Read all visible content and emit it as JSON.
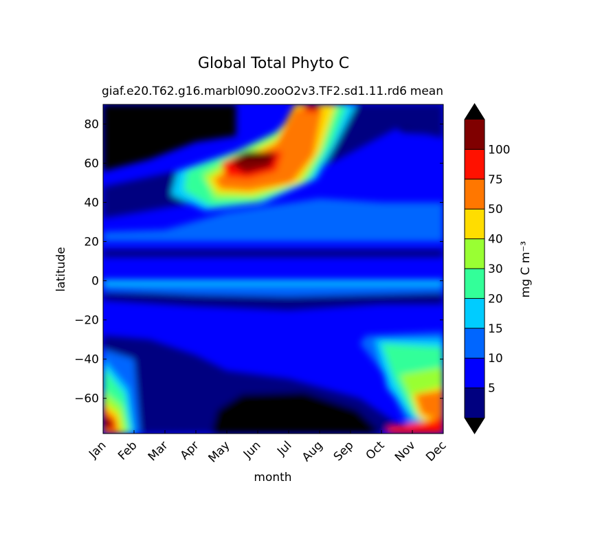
{
  "chart_data": {
    "type": "heatmap",
    "title": "Global Total Phyto C",
    "subtitle_left": "giaf.e20.T62.g16.marbl090.zooO2v3.TF2.sd1.11.rd6",
    "subtitle_right": "mean",
    "xlabel": "month",
    "ylabel": "latitude",
    "x_ticks": [
      "Jan",
      "Feb",
      "Mar",
      "Apr",
      "May",
      "Jun",
      "Jul",
      "Aug",
      "Sep",
      "Oct",
      "Nov",
      "Dec"
    ],
    "y_ticks": [
      "80",
      "60",
      "40",
      "20",
      "0",
      "−20",
      "−40",
      "−60"
    ],
    "y_tick_values": [
      80,
      60,
      40,
      20,
      0,
      -20,
      -40,
      -60
    ],
    "ylim": [
      -78,
      90
    ],
    "colorbar": {
      "label": "mg C m⁻³",
      "levels": [
        0,
        5,
        10,
        15,
        20,
        30,
        40,
        50,
        75,
        100,
        120
      ],
      "tick_labels": [
        "5",
        "10",
        "15",
        "20",
        "30",
        "40",
        "50",
        "75",
        "100"
      ],
      "extend": "both",
      "colors": [
        "#000080",
        "#0000ff",
        "#0066ff",
        "#00ccff",
        "#33ff99",
        "#99ff33",
        "#ffdd00",
        "#ff7700",
        "#ff1100",
        "#800000"
      ],
      "under_color": "#000000",
      "over_color": "#000000"
    },
    "grid": false
  }
}
